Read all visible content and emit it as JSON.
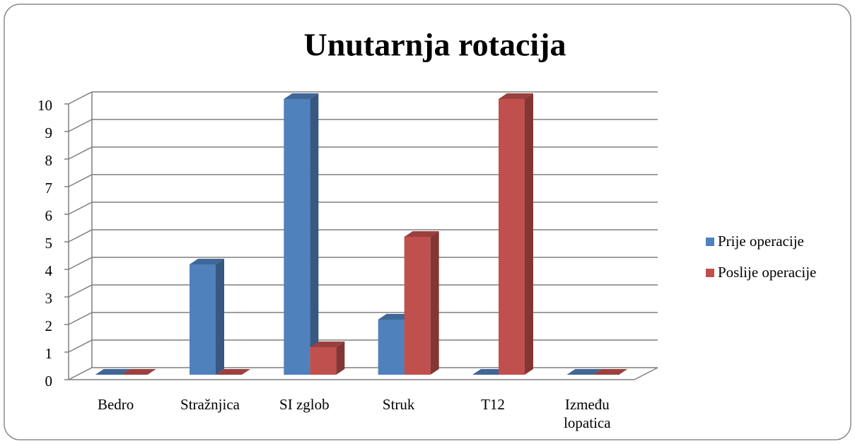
{
  "chart_data": {
    "type": "bar3d",
    "title": "Unutarnja rotacija",
    "categories": [
      "Bedro",
      "Stražnjica",
      "SI zglob",
      "Struk",
      "T12",
      "Između lopatica"
    ],
    "series": [
      {
        "name": "Prije operacije",
        "color": "#4f81bd",
        "values": [
          0,
          4,
          10,
          2,
          0,
          0
        ]
      },
      {
        "name": "Poslije operacije",
        "color": "#c0504d",
        "values": [
          0,
          0,
          1,
          5,
          10,
          0
        ]
      }
    ],
    "ylim": [
      0,
      10
    ],
    "yticks": [
      0,
      1,
      2,
      3,
      4,
      5,
      6,
      7,
      8,
      9,
      10
    ],
    "grid": true,
    "legend": "right"
  }
}
